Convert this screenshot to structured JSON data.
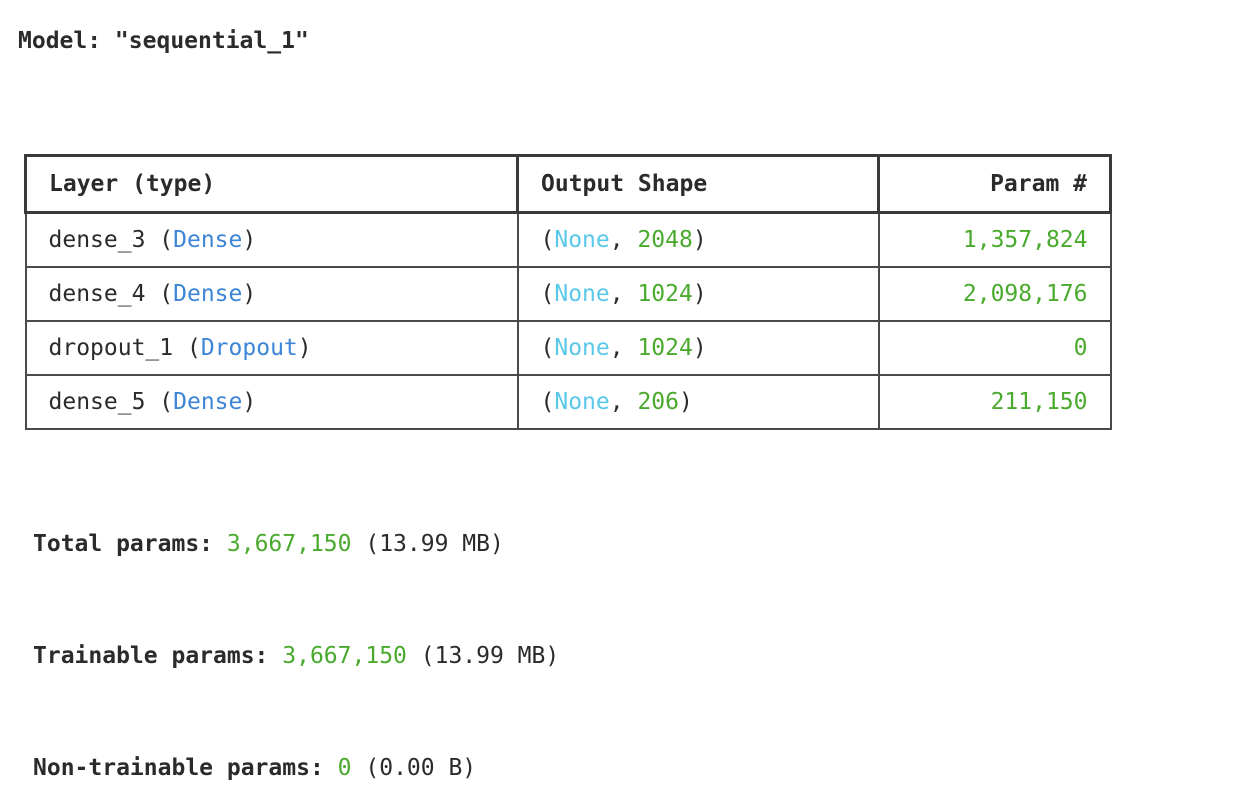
{
  "model": {
    "label": "Model: \"sequential_1\""
  },
  "table": {
    "headers": {
      "layer": "Layer (type)",
      "shape": "Output Shape",
      "params": "Param #"
    },
    "rows": [
      {
        "name": "dense_3",
        "type": "Dense",
        "shape_none": "None",
        "shape_dim": "2048",
        "params": "1,357,824"
      },
      {
        "name": "dense_4",
        "type": "Dense",
        "shape_none": "None",
        "shape_dim": "1024",
        "params": "2,098,176"
      },
      {
        "name": "dropout_1",
        "type": "Dropout",
        "shape_none": "None",
        "shape_dim": "1024",
        "params": "0"
      },
      {
        "name": "dense_5",
        "type": "Dense",
        "shape_none": "None",
        "shape_dim": "206",
        "params": "211,150"
      }
    ]
  },
  "totals": {
    "total": {
      "label": "Total params:",
      "count": "3,667,150",
      "size": "(13.99 MB)"
    },
    "trainable": {
      "label": "Trainable params:",
      "count": "3,667,150",
      "size": "(13.99 MB)"
    },
    "non_trainable": {
      "label": "Non-trainable params:",
      "count": "0",
      "size": "(0.00 B)"
    }
  },
  "colors": {
    "type_blue": "#3d85d6",
    "none_cyan": "#5ac8e8",
    "number_green": "#4aaa2e"
  }
}
